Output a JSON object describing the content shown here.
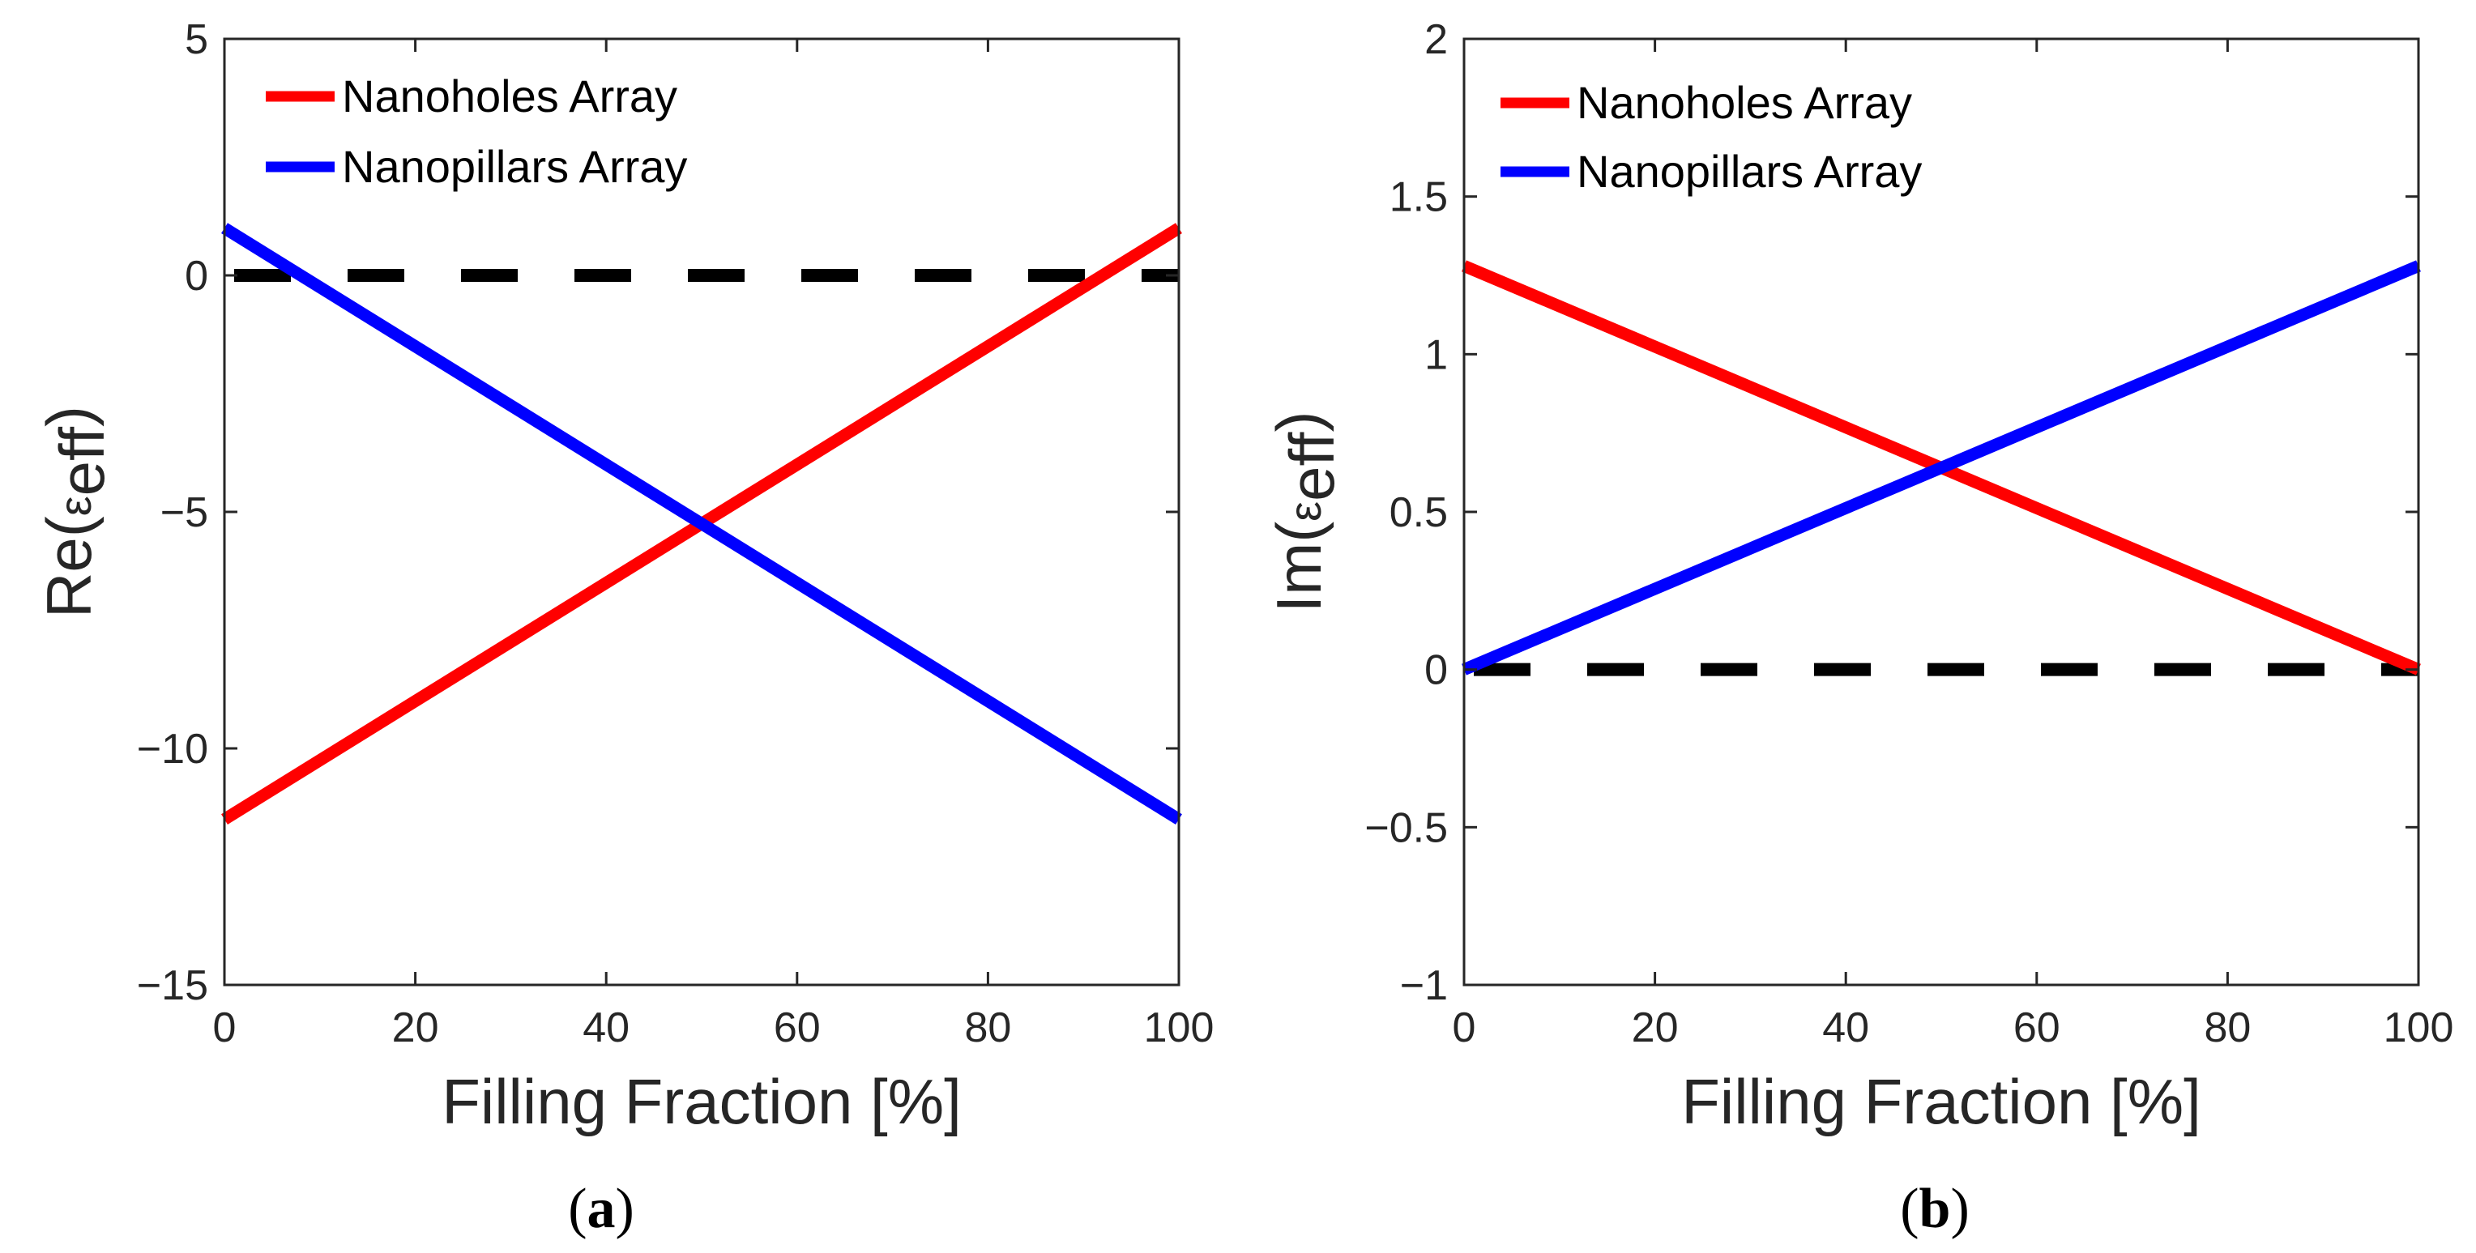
{
  "colors": {
    "nanoholes": "#ff0000",
    "nanopillars": "#0000ff",
    "zero_line": "#000000",
    "axis": "#262626"
  },
  "chart_data": [
    {
      "type": "line",
      "caption_letter": "a",
      "xlabel": "Filling Fraction [%]",
      "ylabel_main": "Re(",
      "ylabel_sym": "ε",
      "ylabel_sub": "eff",
      "ylabel_close": ")",
      "xlim": [
        0,
        100
      ],
      "ylim": [
        -15,
        5
      ],
      "xticks": [
        0,
        20,
        40,
        60,
        80,
        100
      ],
      "xtick_labels": [
        "0",
        "20",
        "40",
        "60",
        "80",
        "100"
      ],
      "yticks": [
        -15,
        -10,
        -5,
        0,
        5
      ],
      "ytick_labels": [
        "−15",
        "−10",
        "−5",
        "0",
        "5"
      ],
      "zero_line": 0,
      "legend_position": "top-left",
      "series": [
        {
          "name": "Nanoholes Array",
          "color": "#ff0000",
          "x": [
            0,
            100
          ],
          "y": [
            -11.5,
            1.0
          ]
        },
        {
          "name": "Nanopillars Array",
          "color": "#0000ff",
          "x": [
            0,
            100
          ],
          "y": [
            1.0,
            -11.5
          ]
        }
      ]
    },
    {
      "type": "line",
      "caption_letter": "b",
      "xlabel": "Filling Fraction [%]",
      "ylabel_main": "Im(",
      "ylabel_sym": "ε",
      "ylabel_sub": "eff",
      "ylabel_close": ")",
      "xlim": [
        0,
        100
      ],
      "ylim": [
        -1,
        2
      ],
      "xticks": [
        0,
        20,
        40,
        60,
        80,
        100
      ],
      "xtick_labels": [
        "0",
        "20",
        "40",
        "60",
        "80",
        "100"
      ],
      "yticks": [
        -1,
        -0.5,
        0,
        0.5,
        1,
        1.5,
        2
      ],
      "ytick_labels": [
        "−1",
        "−0.5",
        "0",
        "0.5",
        "1",
        "1.5",
        "2"
      ],
      "zero_line": 0,
      "legend_position": "top-left",
      "series": [
        {
          "name": "Nanoholes Array",
          "color": "#ff0000",
          "x": [
            0,
            100
          ],
          "y": [
            1.28,
            0.0
          ]
        },
        {
          "name": "Nanopillars Array",
          "color": "#0000ff",
          "x": [
            0,
            100
          ],
          "y": [
            0.0,
            1.28
          ]
        }
      ]
    }
  ]
}
